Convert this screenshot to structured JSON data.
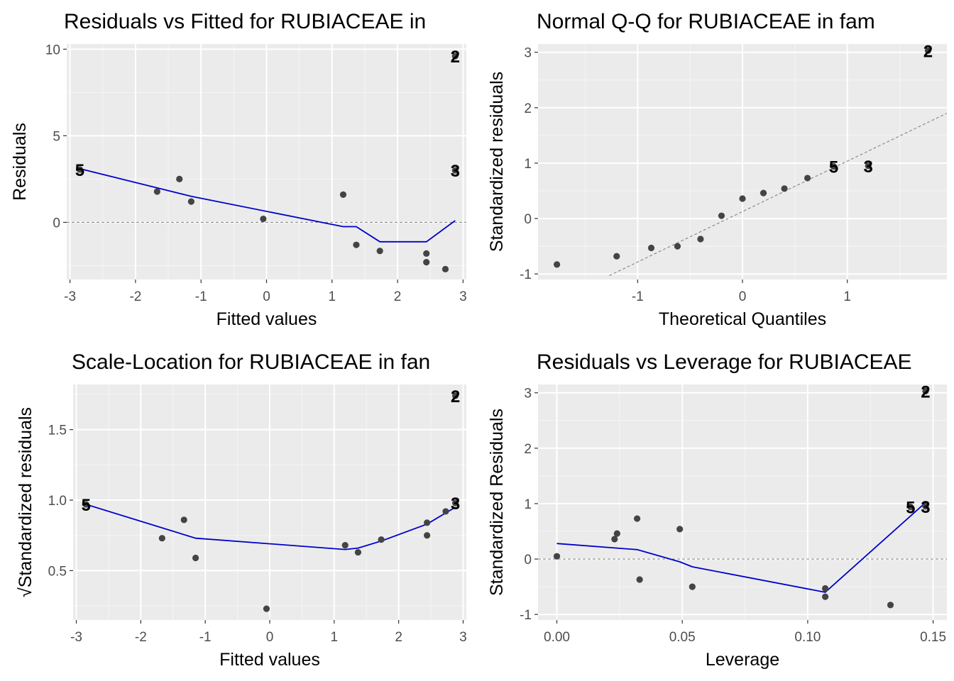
{
  "colors": {
    "panel_bg": "#EBEBEB",
    "grid_major": "#FFFFFF",
    "grid_minor": "#F5F5F5",
    "points": "#444444",
    "smooth": "#0000CC",
    "refline": "#8C8C8C",
    "tick_text": "#4D4D4D"
  },
  "chart_data": [
    {
      "type": "scatter",
      "title": "Residuals vs Fitted for RUBIACEAE in",
      "xlabel": "Fitted values",
      "ylabel": "Residuals",
      "xlim": [
        -3.05,
        3.05
      ],
      "ylim": [
        -3.3,
        10.3
      ],
      "xticks": [
        -3,
        -2,
        -1,
        0,
        1,
        2,
        3
      ],
      "yticks": [
        0,
        5,
        10
      ],
      "xtick_labels": [
        "-3",
        "-2",
        "-1",
        "0",
        "1",
        "2",
        "3"
      ],
      "ytick_labels": [
        "0",
        "5",
        "10"
      ],
      "reference_line": {
        "type": "horizontal",
        "y": 0,
        "style": "dashed"
      },
      "points": [
        {
          "x": -2.85,
          "y": 3.05
        },
        {
          "x": -1.67,
          "y": 1.78
        },
        {
          "x": -1.33,
          "y": 2.5
        },
        {
          "x": -1.15,
          "y": 1.2
        },
        {
          "x": -0.05,
          "y": 0.2
        },
        {
          "x": 1.17,
          "y": 1.6
        },
        {
          "x": 1.37,
          "y": -1.3
        },
        {
          "x": 1.73,
          "y": -1.65
        },
        {
          "x": 2.44,
          "y": -1.8
        },
        {
          "x": 2.44,
          "y": -2.3
        },
        {
          "x": 2.73,
          "y": -2.7
        },
        {
          "x": 2.88,
          "y": 3.0
        },
        {
          "x": 2.88,
          "y": 9.6
        }
      ],
      "labeled_points": [
        {
          "label": "5",
          "x": -2.85,
          "y": 3.05
        },
        {
          "label": "3",
          "x": 2.88,
          "y": 3.0
        },
        {
          "label": "2",
          "x": 2.88,
          "y": 9.6
        }
      ],
      "smooth_line": [
        {
          "x": -2.85,
          "y": 3.1
        },
        {
          "x": -1.15,
          "y": 1.5
        },
        {
          "x": 1.17,
          "y": -0.25
        },
        {
          "x": 1.37,
          "y": -0.25
        },
        {
          "x": 1.73,
          "y": -1.12
        },
        {
          "x": 2.44,
          "y": -1.12
        },
        {
          "x": 2.88,
          "y": 0.1
        }
      ]
    },
    {
      "type": "scatter",
      "title": "Normal Q-Q for RUBIACEAE in fam",
      "xlabel": "Theoretical Quantiles",
      "ylabel": "Standardized residuals",
      "xlim": [
        -1.95,
        1.95
      ],
      "ylim": [
        -1.1,
        3.15
      ],
      "xticks": [
        -1,
        0,
        1
      ],
      "yticks": [
        -1,
        0,
        1,
        2,
        3
      ],
      "xtick_labels": [
        "-1",
        "0",
        "1"
      ],
      "ytick_labels": [
        "-1",
        "0",
        "1",
        "2",
        "3"
      ],
      "reference_line": {
        "type": "qq",
        "from": {
          "x": -1.27,
          "y": -1.03
        },
        "to": {
          "x": 1.95,
          "y": 1.9
        },
        "style": "dashed"
      },
      "points": [
        {
          "x": -1.77,
          "y": -0.83
        },
        {
          "x": -1.2,
          "y": -0.68
        },
        {
          "x": -0.87,
          "y": -0.53
        },
        {
          "x": -0.62,
          "y": -0.5
        },
        {
          "x": -0.4,
          "y": -0.37
        },
        {
          "x": -0.2,
          "y": 0.05
        },
        {
          "x": 0.0,
          "y": 0.36
        },
        {
          "x": 0.2,
          "y": 0.46
        },
        {
          "x": 0.4,
          "y": 0.54
        },
        {
          "x": 0.62,
          "y": 0.73
        },
        {
          "x": 0.87,
          "y": 0.94
        },
        {
          "x": 1.2,
          "y": 0.95
        },
        {
          "x": 1.77,
          "y": 3.03
        }
      ],
      "labeled_points": [
        {
          "label": "5",
          "x": 0.87,
          "y": 0.94
        },
        {
          "label": "3",
          "x": 1.2,
          "y": 0.95
        },
        {
          "label": "2",
          "x": 1.77,
          "y": 3.03
        }
      ]
    },
    {
      "type": "scatter",
      "title": "Scale-Location for RUBIACEAE in fan",
      "xlabel": "Fitted values",
      "ylabel": "√Standardized residuals",
      "xlim": [
        -3.05,
        3.05
      ],
      "ylim": [
        0.15,
        1.82
      ],
      "xticks": [
        -3,
        -2,
        -1,
        0,
        1,
        2,
        3
      ],
      "yticks": [
        0.5,
        1.0,
        1.5
      ],
      "xtick_labels": [
        "-3",
        "-2",
        "-1",
        "0",
        "1",
        "2",
        "3"
      ],
      "ytick_labels": [
        "0.5",
        "1.0",
        "1.5"
      ],
      "points": [
        {
          "x": -2.85,
          "y": 0.97
        },
        {
          "x": -1.67,
          "y": 0.73
        },
        {
          "x": -1.33,
          "y": 0.86
        },
        {
          "x": -1.15,
          "y": 0.59
        },
        {
          "x": -0.05,
          "y": 0.23
        },
        {
          "x": 1.17,
          "y": 0.68
        },
        {
          "x": 1.37,
          "y": 0.63
        },
        {
          "x": 1.73,
          "y": 0.72
        },
        {
          "x": 2.44,
          "y": 0.84
        },
        {
          "x": 2.44,
          "y": 0.75
        },
        {
          "x": 2.73,
          "y": 0.92
        },
        {
          "x": 2.88,
          "y": 0.98
        },
        {
          "x": 2.88,
          "y": 1.74
        }
      ],
      "labeled_points": [
        {
          "label": "5",
          "x": -2.85,
          "y": 0.97
        },
        {
          "label": "3",
          "x": 2.88,
          "y": 0.98
        },
        {
          "label": "2",
          "x": 2.88,
          "y": 1.74
        }
      ],
      "smooth_line": [
        {
          "x": -2.85,
          "y": 0.97
        },
        {
          "x": -1.15,
          "y": 0.73
        },
        {
          "x": 1.17,
          "y": 0.65
        },
        {
          "x": 1.37,
          "y": 0.66
        },
        {
          "x": 1.73,
          "y": 0.71
        },
        {
          "x": 2.44,
          "y": 0.83
        },
        {
          "x": 2.88,
          "y": 0.95
        }
      ]
    },
    {
      "type": "scatter",
      "title": "Residuals vs Leverage for RUBIACEAE",
      "xlabel": "Leverage",
      "ylabel": "Standardized Residuals",
      "xlim": [
        -0.0075,
        0.1555
      ],
      "ylim": [
        -1.1,
        3.15
      ],
      "xticks": [
        0.0,
        0.05,
        0.1,
        0.15
      ],
      "yticks": [
        -1,
        0,
        1,
        2,
        3
      ],
      "xtick_labels": [
        "0.00",
        "0.05",
        "0.10",
        "0.15"
      ],
      "ytick_labels": [
        "-1",
        "0",
        "1",
        "2",
        "3"
      ],
      "reference_line": {
        "type": "horizontal",
        "y": 0,
        "style": "dashed"
      },
      "points": [
        {
          "x": 0.0,
          "y": 0.05
        },
        {
          "x": 0.023,
          "y": 0.36
        },
        {
          "x": 0.024,
          "y": 0.46
        },
        {
          "x": 0.032,
          "y": 0.73
        },
        {
          "x": 0.033,
          "y": -0.37
        },
        {
          "x": 0.049,
          "y": 0.54
        },
        {
          "x": 0.054,
          "y": -0.5
        },
        {
          "x": 0.107,
          "y": -0.53
        },
        {
          "x": 0.107,
          "y": -0.68
        },
        {
          "x": 0.133,
          "y": -0.83
        },
        {
          "x": 0.141,
          "y": 0.94
        },
        {
          "x": 0.147,
          "y": 0.95
        },
        {
          "x": 0.147,
          "y": 3.03
        }
      ],
      "labeled_points": [
        {
          "label": "5",
          "x": 0.141,
          "y": 0.94
        },
        {
          "label": "3",
          "x": 0.147,
          "y": 0.95
        },
        {
          "label": "2",
          "x": 0.147,
          "y": 3.03
        }
      ],
      "smooth_line": [
        {
          "x": 0.0,
          "y": 0.28
        },
        {
          "x": 0.032,
          "y": 0.17
        },
        {
          "x": 0.049,
          "y": -0.05
        },
        {
          "x": 0.054,
          "y": -0.14
        },
        {
          "x": 0.107,
          "y": -0.6
        },
        {
          "x": 0.147,
          "y": 1.02
        }
      ]
    }
  ]
}
